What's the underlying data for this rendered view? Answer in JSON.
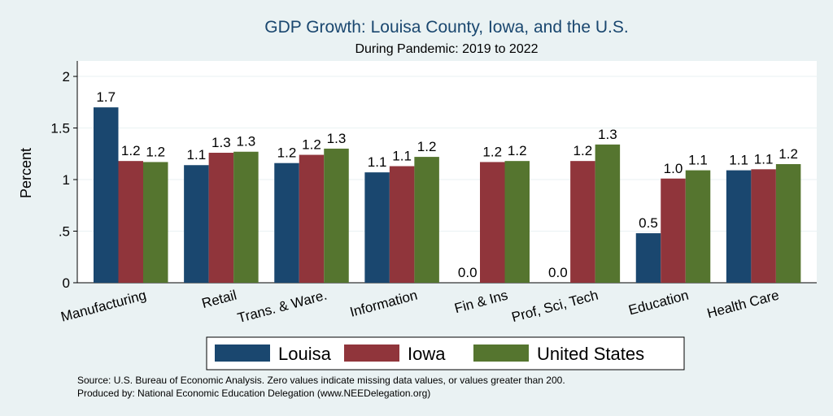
{
  "chart_data": {
    "type": "bar",
    "title": "GDP Growth: Louisa County, Iowa, and the U.S.",
    "subtitle": "During Pandemic: 2019 to 2022",
    "ylabel": "Percent",
    "ylim": [
      0,
      2.15
    ],
    "yticks": [
      {
        "value": 0,
        "label": "0"
      },
      {
        "value": 0.5,
        "label": ".5"
      },
      {
        "value": 1,
        "label": "1"
      },
      {
        "value": 1.5,
        "label": "1.5"
      },
      {
        "value": 2,
        "label": "2"
      }
    ],
    "grid": true,
    "legend_position": "bottom",
    "categories": [
      "Manufacturing",
      "Retail",
      "Trans. & Ware.",
      "Information",
      "Fin & Ins",
      "Prof, Sci, Tech",
      "Education",
      "Health Care"
    ],
    "series": [
      {
        "name": "Louisa",
        "color": "#1a476f",
        "values": [
          1.7,
          1.14,
          1.16,
          1.07,
          0,
          0,
          0.48,
          1.09
        ],
        "labels": [
          "1.7",
          "1.1",
          "1.2",
          "1.1",
          "0.0",
          "0.0",
          "0.5",
          "1.1"
        ]
      },
      {
        "name": "Iowa",
        "color": "#90353b",
        "values": [
          1.18,
          1.26,
          1.24,
          1.13,
          1.17,
          1.18,
          1.01,
          1.1
        ],
        "labels": [
          "1.2",
          "1.3",
          "1.2",
          "1.1",
          "1.2",
          "1.2",
          "1.0",
          "1.1"
        ]
      },
      {
        "name": "United States",
        "color": "#55752f",
        "values": [
          1.17,
          1.27,
          1.3,
          1.22,
          1.18,
          1.34,
          1.09,
          1.15
        ],
        "labels": [
          "1.2",
          "1.3",
          "1.3",
          "1.2",
          "1.2",
          "1.3",
          "1.1",
          "1.2"
        ]
      }
    ],
    "source_note": "Source: U.S. Bureau of Economic Analysis. Zero values indicate missing data values, or values greater than 200.",
    "producer_note": "Produced by: National Economic Education Delegation (www.NEEDelegation.org)"
  }
}
